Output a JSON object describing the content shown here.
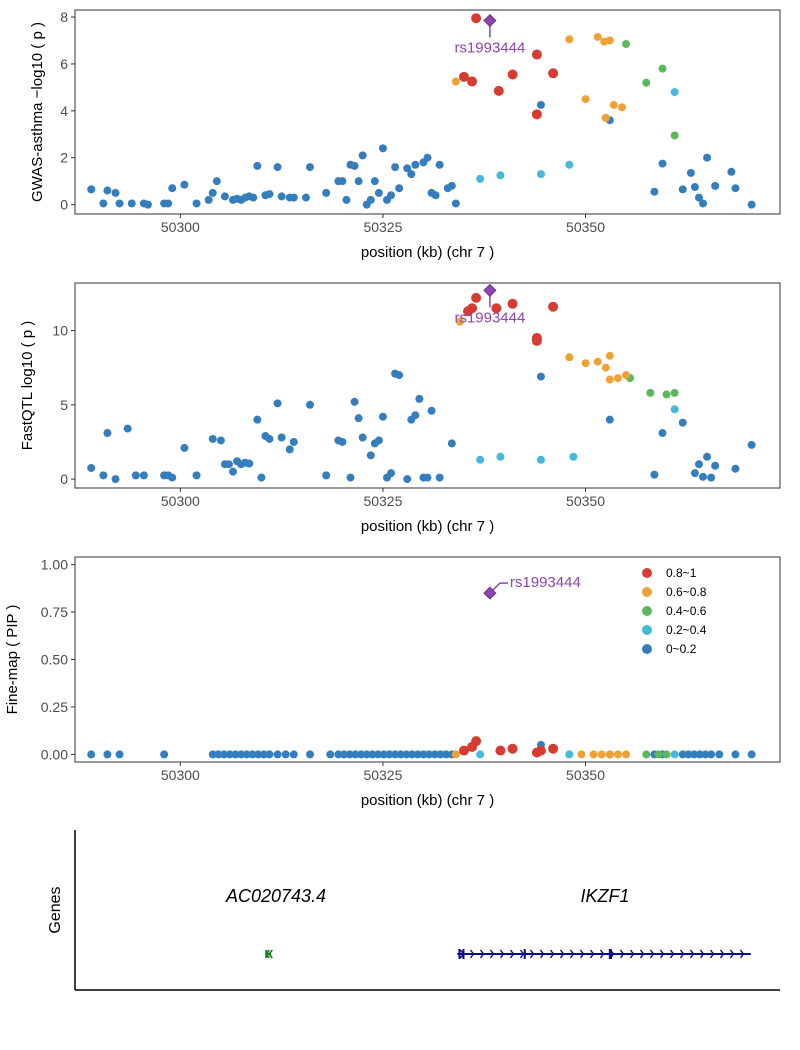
{
  "colors": {
    "bin_0.8~1": "#d73c32",
    "bin_0.6~0.8": "#eea236",
    "bin_0.4~0.6": "#5cb85c",
    "bin_0.2~0.4": "#46b8da",
    "bin_0~0.2": "#357ebd",
    "lead_snp": "#8e44ad",
    "gene_ikzf1": "#0a0a8a",
    "gene_ac020743": "#1a7a1a"
  },
  "chart_data": [
    {
      "type": "scatter",
      "ylabel": "GWAS-asthma −log10 ( p )",
      "xlabel": "position (kb) (chr 7 )",
      "xlim": [
        50287,
        50374
      ],
      "ylim": [
        -0.4,
        8.3
      ],
      "xticks": [
        50300,
        50325,
        50350
      ],
      "yticks": [
        0,
        2,
        4,
        6,
        8
      ],
      "lead": {
        "label": "rs1993444",
        "x": 50338.2,
        "y": 7.85
      },
      "bins": {
        "0.8~1": [
          [
            50336.5,
            7.95
          ],
          [
            50335,
            5.45
          ],
          [
            50336,
            5.25
          ],
          [
            50339.3,
            4.85
          ],
          [
            50341,
            5.55
          ],
          [
            50344,
            6.4
          ],
          [
            50346,
            5.6
          ],
          [
            50344,
            3.85
          ]
        ],
        "0.6~0.8": [
          [
            50334,
            5.25
          ],
          [
            50348,
            7.05
          ],
          [
            50351.5,
            7.15
          ],
          [
            50352.3,
            6.95
          ],
          [
            50353,
            7.0
          ],
          [
            50350,
            4.5
          ],
          [
            50353.5,
            4.25
          ],
          [
            50354.5,
            4.15
          ],
          [
            50352.5,
            3.7
          ]
        ],
        "0.4~0.6": [
          [
            50355,
            6.85
          ],
          [
            50357.5,
            5.2
          ],
          [
            50359.5,
            5.8
          ],
          [
            50361,
            2.95
          ],
          [
            50352.5,
            3.7
          ]
        ],
        "0.2~0.4": [
          [
            50337,
            1.1
          ],
          [
            50339.5,
            1.25
          ],
          [
            50344.5,
            1.3
          ],
          [
            50348,
            1.7
          ],
          [
            50361,
            4.8
          ]
        ],
        "0~0.2": [
          [
            50289,
            0.65
          ],
          [
            50290.5,
            0.05
          ],
          [
            50291,
            0.6
          ],
          [
            50292,
            0.5
          ],
          [
            50292.5,
            0.05
          ],
          [
            50294,
            0.05
          ],
          [
            50295.5,
            0.05
          ],
          [
            50296,
            0.0
          ],
          [
            50298,
            0.05
          ],
          [
            50298.5,
            0.05
          ],
          [
            50299,
            0.7
          ],
          [
            50300.5,
            0.85
          ],
          [
            50302,
            0.05
          ],
          [
            50303.5,
            0.2
          ],
          [
            50304,
            0.5
          ],
          [
            50304.5,
            1.0
          ],
          [
            50305.5,
            0.35
          ],
          [
            50306.5,
            0.2
          ],
          [
            50307,
            0.25
          ],
          [
            50307.5,
            0.2
          ],
          [
            50308,
            0.3
          ],
          [
            50308.5,
            0.35
          ],
          [
            50309,
            0.3
          ],
          [
            50309.5,
            1.65
          ],
          [
            50310.5,
            0.4
          ],
          [
            50311,
            0.45
          ],
          [
            50312,
            1.6
          ],
          [
            50312.5,
            0.35
          ],
          [
            50313.5,
            0.3
          ],
          [
            50314,
            0.3
          ],
          [
            50315.5,
            0.3
          ],
          [
            50316,
            1.6
          ],
          [
            50318,
            0.5
          ],
          [
            50319.5,
            1.0
          ],
          [
            50320,
            1.0
          ],
          [
            50320.5,
            0.2
          ],
          [
            50321,
            1.7
          ],
          [
            50321.5,
            1.65
          ],
          [
            50322,
            1.0
          ],
          [
            50322.5,
            2.1
          ],
          [
            50323,
            0.0
          ],
          [
            50323.5,
            0.2
          ],
          [
            50324,
            1.0
          ],
          [
            50324.5,
            0.5
          ],
          [
            50325,
            2.4
          ],
          [
            50325.5,
            0.2
          ],
          [
            50326,
            0.4
          ],
          [
            50326.5,
            1.6
          ],
          [
            50327,
            0.7
          ],
          [
            50328,
            1.55
          ],
          [
            50328.5,
            1.3
          ],
          [
            50329,
            1.7
          ],
          [
            50330,
            1.8
          ],
          [
            50330.5,
            2.0
          ],
          [
            50331,
            0.5
          ],
          [
            50331.5,
            0.4
          ],
          [
            50332,
            1.7
          ],
          [
            50333,
            0.7
          ],
          [
            50333.5,
            0.8
          ],
          [
            50334,
            0.05
          ],
          [
            50344.5,
            4.25
          ],
          [
            50353,
            3.6
          ],
          [
            50358.5,
            0.55
          ],
          [
            50359.5,
            1.75
          ],
          [
            50362,
            0.65
          ],
          [
            50363,
            1.35
          ],
          [
            50363.5,
            0.75
          ],
          [
            50364,
            0.3
          ],
          [
            50364.5,
            0.05
          ],
          [
            50365,
            2.0
          ],
          [
            50366,
            0.8
          ],
          [
            50368,
            1.4
          ],
          [
            50368.5,
            0.7
          ],
          [
            50370.5,
            0.0
          ]
        ]
      }
    },
    {
      "type": "scatter",
      "ylabel": "FastQTL log10 ( p )",
      "xlabel": "position (kb) (chr 7 )",
      "xlim": [
        50287,
        50374
      ],
      "ylim": [
        -0.6,
        13.2
      ],
      "xticks": [
        50300,
        50325,
        50350
      ],
      "yticks": [
        0,
        5,
        10
      ],
      "lead": {
        "label": "rs1993444",
        "x": 50338.2,
        "y": 12.7
      },
      "bins": {
        "0.8~1": [
          [
            50336,
            11.5
          ],
          [
            50336.5,
            12.2
          ],
          [
            50335.5,
            11.3
          ],
          [
            50339,
            11.5
          ],
          [
            50341,
            11.8
          ],
          [
            50344,
            9.5
          ],
          [
            50344,
            9.3
          ],
          [
            50346,
            11.6
          ]
        ],
        "0.6~0.8": [
          [
            50334.5,
            10.6
          ],
          [
            50348,
            8.2
          ],
          [
            50350,
            7.8
          ],
          [
            50351.5,
            7.9
          ],
          [
            50352.5,
            7.5
          ],
          [
            50353,
            8.3
          ],
          [
            50354,
            6.8
          ],
          [
            50355,
            7.0
          ],
          [
            50353,
            6.7
          ]
        ],
        "0.4~0.6": [
          [
            50355.5,
            6.8
          ],
          [
            50358,
            5.8
          ],
          [
            50360,
            5.7
          ],
          [
            50361,
            5.8
          ]
        ],
        "0.2~0.4": [
          [
            50337,
            1.3
          ],
          [
            50339.5,
            1.5
          ],
          [
            50344.5,
            1.3
          ],
          [
            50348.5,
            1.5
          ],
          [
            50361,
            4.7
          ]
        ],
        "0~0.2": [
          [
            50289,
            0.75
          ],
          [
            50290.5,
            0.25
          ],
          [
            50291,
            3.1
          ],
          [
            50292,
            0.0
          ],
          [
            50293.5,
            3.4
          ],
          [
            50294.5,
            0.25
          ],
          [
            50295.5,
            0.25
          ],
          [
            50298,
            0.25
          ],
          [
            50298.5,
            0.25
          ],
          [
            50299,
            0.1
          ],
          [
            50300.5,
            2.1
          ],
          [
            50302,
            0.25
          ],
          [
            50304,
            2.7
          ],
          [
            50305,
            2.6
          ],
          [
            50305.5,
            1.0
          ],
          [
            50306,
            1.0
          ],
          [
            50306.5,
            0.5
          ],
          [
            50307,
            1.2
          ],
          [
            50307.5,
            1.0
          ],
          [
            50308,
            1.1
          ],
          [
            50308.5,
            1.05
          ],
          [
            50309.5,
            4.0
          ],
          [
            50310,
            0.1
          ],
          [
            50310.5,
            2.9
          ],
          [
            50311,
            2.7
          ],
          [
            50312,
            5.1
          ],
          [
            50312.5,
            2.8
          ],
          [
            50313.5,
            2.0
          ],
          [
            50314,
            2.5
          ],
          [
            50316,
            5.0
          ],
          [
            50318,
            0.25
          ],
          [
            50319.5,
            2.6
          ],
          [
            50320,
            2.5
          ],
          [
            50321,
            0.1
          ],
          [
            50321.5,
            5.2
          ],
          [
            50322,
            4.1
          ],
          [
            50322.5,
            2.8
          ],
          [
            50323.5,
            1.6
          ],
          [
            50324,
            2.4
          ],
          [
            50324.5,
            2.6
          ],
          [
            50325,
            4.2
          ],
          [
            50325.5,
            0.1
          ],
          [
            50326,
            0.4
          ],
          [
            50326.5,
            7.1
          ],
          [
            50327,
            7.0
          ],
          [
            50328,
            0.0
          ],
          [
            50328.5,
            4.0
          ],
          [
            50329,
            4.3
          ],
          [
            50329.5,
            5.4
          ],
          [
            50330,
            0.1
          ],
          [
            50330.5,
            0.1
          ],
          [
            50331,
            4.6
          ],
          [
            50332,
            0.1
          ],
          [
            50333.5,
            2.4
          ],
          [
            50344.5,
            6.9
          ],
          [
            50353,
            4.0
          ],
          [
            50358.5,
            0.3
          ],
          [
            50359.5,
            3.1
          ],
          [
            50362,
            3.8
          ],
          [
            50363.5,
            0.4
          ],
          [
            50364,
            1.0
          ],
          [
            50364.5,
            0.15
          ],
          [
            50365,
            1.5
          ],
          [
            50365.5,
            0.1
          ],
          [
            50366,
            0.9
          ],
          [
            50368.5,
            0.7
          ],
          [
            50370.5,
            2.3
          ]
        ]
      }
    },
    {
      "type": "scatter",
      "ylabel": "Fine-map ( PIP )",
      "xlabel": "position (kb) (chr 7 )",
      "xlim": [
        50287,
        50374
      ],
      "ylim": [
        -0.04,
        1.04
      ],
      "xticks": [
        50300,
        50325,
        50350
      ],
      "yticks": [
        "0.00",
        "0.25",
        "0.50",
        "0.75",
        "1.00"
      ],
      "lead": {
        "label": "rs1993444",
        "x": 50338.2,
        "y": 0.85
      },
      "legend": {
        "placement": "top-right",
        "entries": [
          "0.8~1",
          "0.6~0.8",
          "0.4~0.6",
          "0.2~0.4",
          "0~0.2"
        ]
      },
      "bins": {
        "0.8~1": [
          [
            50335,
            0.02
          ],
          [
            50336,
            0.04
          ],
          [
            50336.5,
            0.07
          ],
          [
            50339.5,
            0.02
          ],
          [
            50341,
            0.03
          ],
          [
            50344,
            0.01
          ],
          [
            50344.5,
            0.02
          ],
          [
            50346,
            0.03
          ]
        ],
        "0.6~0.8": [
          [
            50334,
            0.0
          ],
          [
            50349.5,
            0.0
          ],
          [
            50351,
            0.0
          ],
          [
            50352,
            0.0
          ],
          [
            50353,
            0.0
          ],
          [
            50354,
            0.0
          ],
          [
            50355,
            0.0
          ]
        ],
        "0.4~0.6": [
          [
            50357.5,
            0.0
          ],
          [
            50359,
            0.0
          ],
          [
            50360,
            0.0
          ]
        ],
        "0.2~0.4": [
          [
            50337,
            0.0
          ],
          [
            50348,
            0.0
          ],
          [
            50361,
            0.0
          ]
        ],
        "0~0.2": [
          [
            50289,
            0.0
          ],
          [
            50291,
            0.0
          ],
          [
            50292.5,
            0.0
          ],
          [
            50298,
            0.0
          ],
          [
            50304,
            0.0
          ],
          [
            50304.7,
            0.0
          ],
          [
            50305.4,
            0.0
          ],
          [
            50306.1,
            0.0
          ],
          [
            50306.8,
            0.0
          ],
          [
            50307.5,
            0.0
          ],
          [
            50308.2,
            0.0
          ],
          [
            50308.9,
            0.0
          ],
          [
            50309.6,
            0.0
          ],
          [
            50310.3,
            0.0
          ],
          [
            50311,
            0.0
          ],
          [
            50312,
            0.0
          ],
          [
            50313,
            0.0
          ],
          [
            50314,
            0.0
          ],
          [
            50316,
            0.0
          ],
          [
            50318.5,
            0.0
          ],
          [
            50319.5,
            0.0
          ],
          [
            50320.2,
            0.0
          ],
          [
            50320.9,
            0.0
          ],
          [
            50321.6,
            0.0
          ],
          [
            50322.3,
            0.0
          ],
          [
            50323,
            0.0
          ],
          [
            50323.7,
            0.0
          ],
          [
            50324.4,
            0.0
          ],
          [
            50325.1,
            0.0
          ],
          [
            50325.8,
            0.0
          ],
          [
            50326.5,
            0.0
          ],
          [
            50327.2,
            0.0
          ],
          [
            50327.9,
            0.0
          ],
          [
            50328.6,
            0.0
          ],
          [
            50329.3,
            0.0
          ],
          [
            50330,
            0.0
          ],
          [
            50330.7,
            0.0
          ],
          [
            50331.4,
            0.0
          ],
          [
            50332.1,
            0.0
          ],
          [
            50332.8,
            0.0
          ],
          [
            50333.5,
            0.0
          ],
          [
            50344.5,
            0.05
          ],
          [
            50353,
            0.0
          ],
          [
            50358.5,
            0.0
          ],
          [
            50359.5,
            0.0
          ],
          [
            50362,
            0.0
          ],
          [
            50362.7,
            0.0
          ],
          [
            50363.4,
            0.0
          ],
          [
            50364.1,
            0.0
          ],
          [
            50364.8,
            0.0
          ],
          [
            50365.5,
            0.0
          ],
          [
            50366.5,
            0.0
          ],
          [
            50368.5,
            0.0
          ],
          [
            50370.5,
            0.0
          ]
        ]
      }
    }
  ],
  "genes": {
    "ylabel": "Genes",
    "items": [
      {
        "name": "AC020743.4",
        "start": 50310.6,
        "end": 50311.2,
        "strand": "-",
        "color_key": "gene_ac020743"
      },
      {
        "name": "IKZF1",
        "start": 50334.2,
        "end": 50370.4,
        "strand": "+",
        "color_key": "gene_ikzf1"
      }
    ]
  }
}
